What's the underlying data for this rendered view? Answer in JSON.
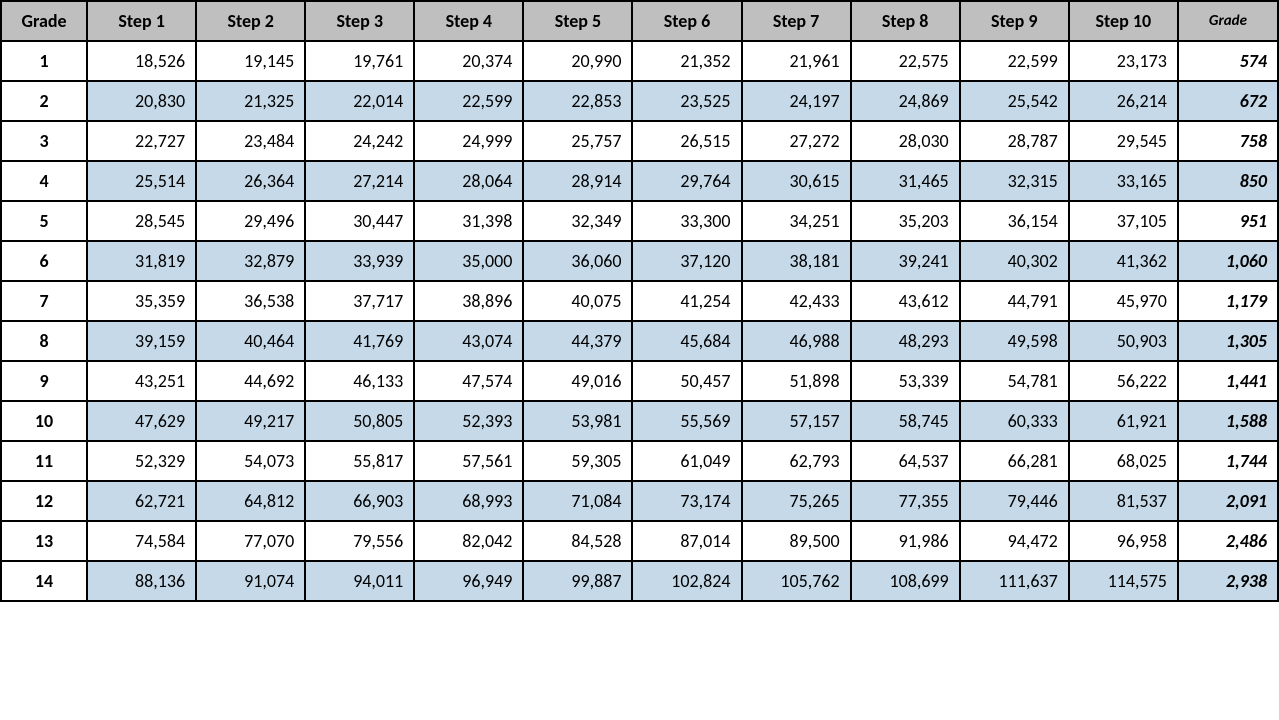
{
  "table": {
    "header_bg": "#bfbfbf",
    "alt_row_bg": "#c5d9e8",
    "border_color": "#000000",
    "columns": [
      "Grade",
      "Step 1",
      "Step 2",
      "Step 3",
      "Step 4",
      "Step 5",
      "Step 6",
      "Step 7",
      "Step 8",
      "Step 9",
      "Step 10",
      "Grade"
    ],
    "last_header_italic": true,
    "rows": [
      {
        "grade": "1",
        "steps": [
          "18,526",
          "19,145",
          "19,761",
          "20,374",
          "20,990",
          "21,352",
          "21,961",
          "22,575",
          "22,599",
          "23,173"
        ],
        "wg": "574",
        "alt": false
      },
      {
        "grade": "2",
        "steps": [
          "20,830",
          "21,325",
          "22,014",
          "22,599",
          "22,853",
          "23,525",
          "24,197",
          "24,869",
          "25,542",
          "26,214"
        ],
        "wg": "672",
        "alt": true
      },
      {
        "grade": "3",
        "steps": [
          "22,727",
          "23,484",
          "24,242",
          "24,999",
          "25,757",
          "26,515",
          "27,272",
          "28,030",
          "28,787",
          "29,545"
        ],
        "wg": "758",
        "alt": false
      },
      {
        "grade": "4",
        "steps": [
          "25,514",
          "26,364",
          "27,214",
          "28,064",
          "28,914",
          "29,764",
          "30,615",
          "31,465",
          "32,315",
          "33,165"
        ],
        "wg": "850",
        "alt": true
      },
      {
        "grade": "5",
        "steps": [
          "28,545",
          "29,496",
          "30,447",
          "31,398",
          "32,349",
          "33,300",
          "34,251",
          "35,203",
          "36,154",
          "37,105"
        ],
        "wg": "951",
        "alt": false
      },
      {
        "grade": "6",
        "steps": [
          "31,819",
          "32,879",
          "33,939",
          "35,000",
          "36,060",
          "37,120",
          "38,181",
          "39,241",
          "40,302",
          "41,362"
        ],
        "wg": "1,060",
        "alt": true
      },
      {
        "grade": "7",
        "steps": [
          "35,359",
          "36,538",
          "37,717",
          "38,896",
          "40,075",
          "41,254",
          "42,433",
          "43,612",
          "44,791",
          "45,970"
        ],
        "wg": "1,179",
        "alt": false
      },
      {
        "grade": "8",
        "steps": [
          "39,159",
          "40,464",
          "41,769",
          "43,074",
          "44,379",
          "45,684",
          "46,988",
          "48,293",
          "49,598",
          "50,903"
        ],
        "wg": "1,305",
        "alt": true
      },
      {
        "grade": "9",
        "steps": [
          "43,251",
          "44,692",
          "46,133",
          "47,574",
          "49,016",
          "50,457",
          "51,898",
          "53,339",
          "54,781",
          "56,222"
        ],
        "wg": "1,441",
        "alt": false
      },
      {
        "grade": "10",
        "steps": [
          "47,629",
          "49,217",
          "50,805",
          "52,393",
          "53,981",
          "55,569",
          "57,157",
          "58,745",
          "60,333",
          "61,921"
        ],
        "wg": "1,588",
        "alt": true
      },
      {
        "grade": "11",
        "steps": [
          "52,329",
          "54,073",
          "55,817",
          "57,561",
          "59,305",
          "61,049",
          "62,793",
          "64,537",
          "66,281",
          "68,025"
        ],
        "wg": "1,744",
        "alt": false
      },
      {
        "grade": "12",
        "steps": [
          "62,721",
          "64,812",
          "66,903",
          "68,993",
          "71,084",
          "73,174",
          "75,265",
          "77,355",
          "79,446",
          "81,537"
        ],
        "wg": "2,091",
        "alt": true
      },
      {
        "grade": "13",
        "steps": [
          "74,584",
          "77,070",
          "79,556",
          "82,042",
          "84,528",
          "87,014",
          "89,500",
          "91,986",
          "94,472",
          "96,958"
        ],
        "wg": "2,486",
        "alt": false
      },
      {
        "grade": "14",
        "steps": [
          "88,136",
          "91,074",
          "94,011",
          "96,949",
          "99,887",
          "102,824",
          "105,762",
          "108,699",
          "111,637",
          "114,575"
        ],
        "wg": "2,938",
        "alt": true
      }
    ]
  }
}
